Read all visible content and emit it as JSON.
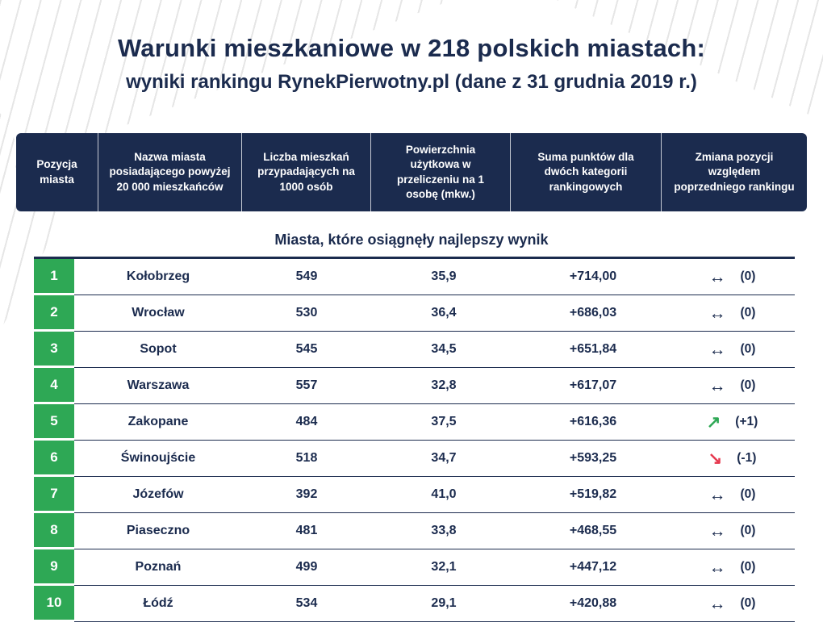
{
  "header": {
    "title": "Warunki mieszkaniowe w 218 polskich miastach:",
    "subtitle": "wyniki rankingu RynekPierwotny.pl (dane z 31 grudnia 2019 r.)"
  },
  "columns": {
    "position": "Pozycja miasta",
    "city": "Nazwa miasta posiadającego powyżej 20 000 mieszkańców",
    "apartments": "Liczba mieszkań przypadających na 1000 osób",
    "area": "Powierzchnia użytkowa w przeliczeniu na 1 osobę (mkw.)",
    "points": "Suma punktów dla dwóch kategorii rankingowych",
    "change": "Zmiana pozycji względem poprzedniego rankingu"
  },
  "section_title": "Miasta, które osiągnęły najlepszy wynik",
  "rows": [
    {
      "position": "1",
      "city": "Kołobrzeg",
      "apartments": "549",
      "area": "35,9",
      "points": "+714,00",
      "trend": "same",
      "trend_icon": "↔",
      "change": "(0)"
    },
    {
      "position": "2",
      "city": "Wrocław",
      "apartments": "530",
      "area": "36,4",
      "points": "+686,03",
      "trend": "same",
      "trend_icon": "↔",
      "change": "(0)"
    },
    {
      "position": "3",
      "city": "Sopot",
      "apartments": "545",
      "area": "34,5",
      "points": "+651,84",
      "trend": "same",
      "trend_icon": "↔",
      "change": "(0)"
    },
    {
      "position": "4",
      "city": "Warszawa",
      "apartments": "557",
      "area": "32,8",
      "points": "+617,07",
      "trend": "same",
      "trend_icon": "↔",
      "change": "(0)"
    },
    {
      "position": "5",
      "city": "Zakopane",
      "apartments": "484",
      "area": "37,5",
      "points": "+616,36",
      "trend": "up",
      "trend_icon": "↗",
      "change": "(+1)"
    },
    {
      "position": "6",
      "city": "Świnoujście",
      "apartments": "518",
      "area": "34,7",
      "points": "+593,25",
      "trend": "down",
      "trend_icon": "↘",
      "change": "(-1)"
    },
    {
      "position": "7",
      "city": "Józefów",
      "apartments": "392",
      "area": "41,0",
      "points": "+519,82",
      "trend": "same",
      "trend_icon": "↔",
      "change": "(0)"
    },
    {
      "position": "8",
      "city": "Piaseczno",
      "apartments": "481",
      "area": "33,8",
      "points": "+468,55",
      "trend": "same",
      "trend_icon": "↔",
      "change": "(0)"
    },
    {
      "position": "9",
      "city": "Poznań",
      "apartments": "499",
      "area": "32,1",
      "points": "+447,12",
      "trend": "same",
      "trend_icon": "↔",
      "change": "(0)"
    },
    {
      "position": "10",
      "city": "Łódź",
      "apartments": "534",
      "area": "29,1",
      "points": "+420,88",
      "trend": "same",
      "trend_icon": "↔",
      "change": "(0)"
    }
  ],
  "colors": {
    "navy": "#1b2b4e",
    "green": "#2ea855",
    "red": "#e6394f",
    "background": "#ffffff"
  },
  "chart_data": {
    "type": "table",
    "title": "Warunki mieszkaniowe w 218 polskich miastach: wyniki rankingu RynekPierwotny.pl (dane z 31 grudnia 2019 r.)",
    "subtitle": "Miasta, które osiągnęły najlepszy wynik",
    "columns": [
      "Pozycja miasta",
      "Nazwa miasta posiadającego powyżej 20 000 mieszkańców",
      "Liczba mieszkań przypadających na 1000 osób",
      "Powierzchnia użytkowa w przeliczeniu na 1 osobę (mkw.)",
      "Suma punktów dla dwóch kategorii rankingowych",
      "Zmiana pozycji względem poprzedniego rankingu"
    ],
    "rows": [
      [
        "1",
        "Kołobrzeg",
        "549",
        "35,9",
        "+714,00",
        "↔ (0)"
      ],
      [
        "2",
        "Wrocław",
        "530",
        "36,4",
        "+686,03",
        "↔ (0)"
      ],
      [
        "3",
        "Sopot",
        "545",
        "34,5",
        "+651,84",
        "↔ (0)"
      ],
      [
        "4",
        "Warszawa",
        "557",
        "32,8",
        "+617,07",
        "↔ (0)"
      ],
      [
        "5",
        "Zakopane",
        "484",
        "37,5",
        "+616,36",
        "↗ (+1)"
      ],
      [
        "6",
        "Świnoujście",
        "518",
        "34,7",
        "+593,25",
        "↘ (-1)"
      ],
      [
        "7",
        "Józefów",
        "392",
        "41,0",
        "+519,82",
        "↔ (0)"
      ],
      [
        "8",
        "Piaseczno",
        "481",
        "33,8",
        "+468,55",
        "↔ (0)"
      ],
      [
        "9",
        "Poznań",
        "499",
        "32,1",
        "+447,12",
        "↔ (0)"
      ],
      [
        "10",
        "Łódź",
        "534",
        "29,1",
        "+420,88",
        "↔ (0)"
      ]
    ]
  }
}
